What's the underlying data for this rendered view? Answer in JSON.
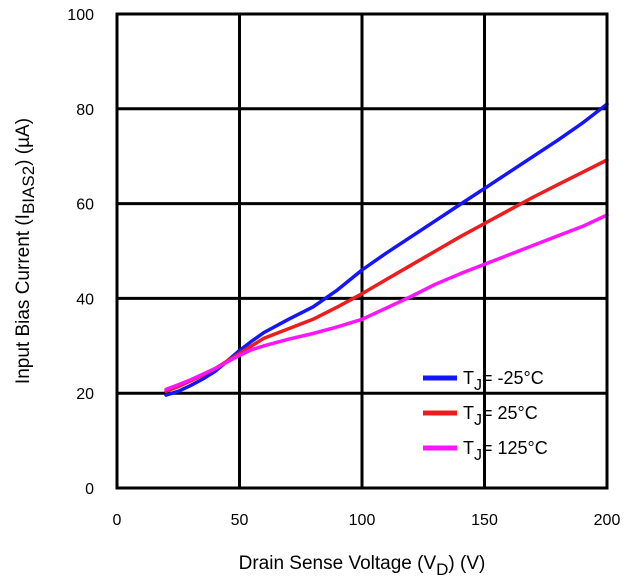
{
  "chart_data": {
    "type": "line",
    "title": "",
    "xlabel": {
      "prefix": "Drain Sense Voltage (V",
      "subscript": "D",
      "suffix": ") (V)"
    },
    "ylabel": {
      "prefix": "Input Bias Current (I",
      "subscript": "BIAS2",
      "suffix": ") (µA)"
    },
    "xlim": [
      0,
      200
    ],
    "ylim": [
      0,
      100
    ],
    "xticks": [
      "0",
      "50",
      "100",
      "150",
      "200"
    ],
    "yticks": [
      "0",
      "20",
      "40",
      "60",
      "80",
      "100"
    ],
    "grid": true,
    "legend_position": "bottom-right",
    "series": [
      {
        "name": "= -25°C",
        "legend_base": "T",
        "legend_sub": "J",
        "color": "#1414ff",
        "x": [
          20,
          25,
          30,
          35,
          40,
          45,
          50,
          55,
          60,
          70,
          80,
          90,
          100,
          110,
          120,
          130,
          140,
          150,
          160,
          170,
          180,
          190,
          200
        ],
        "y": [
          19.6,
          20.4,
          21.6,
          23.0,
          24.6,
          26.8,
          29.0,
          31.0,
          32.8,
          35.6,
          38.2,
          41.8,
          46.0,
          49.6,
          53.0,
          56.4,
          59.8,
          63.2,
          66.6,
          70.0,
          73.4,
          77.0,
          81.0
        ]
      },
      {
        "name": "= 25°C",
        "legend_base": "T",
        "legend_sub": "J",
        "color": "#ee1c1c",
        "x": [
          20,
          25,
          30,
          35,
          40,
          45,
          50,
          55,
          60,
          70,
          80,
          90,
          100,
          110,
          120,
          130,
          140,
          150,
          160,
          170,
          180,
          190,
          200
        ],
        "y": [
          20.4,
          21.4,
          22.6,
          23.8,
          25.2,
          26.8,
          28.4,
          30.0,
          31.6,
          33.6,
          35.6,
          38.2,
          41.0,
          44.0,
          47.0,
          50.0,
          53.0,
          55.8,
          58.6,
          61.4,
          64.0,
          66.6,
          69.2
        ]
      },
      {
        "name": "= 125°C",
        "legend_base": "T",
        "legend_sub": "J",
        "color": "#ff14ff",
        "x": [
          20,
          25,
          30,
          35,
          40,
          45,
          50,
          55,
          60,
          70,
          80,
          90,
          100,
          110,
          120,
          130,
          140,
          150,
          160,
          170,
          180,
          190,
          200
        ],
        "y": [
          20.8,
          21.8,
          22.8,
          24.0,
          25.2,
          26.6,
          28.0,
          29.2,
          30.0,
          31.4,
          32.6,
          34.0,
          35.6,
          38.0,
          40.4,
          43.0,
          45.2,
          47.2,
          49.2,
          51.2,
          53.2,
          55.2,
          57.6
        ]
      }
    ]
  }
}
